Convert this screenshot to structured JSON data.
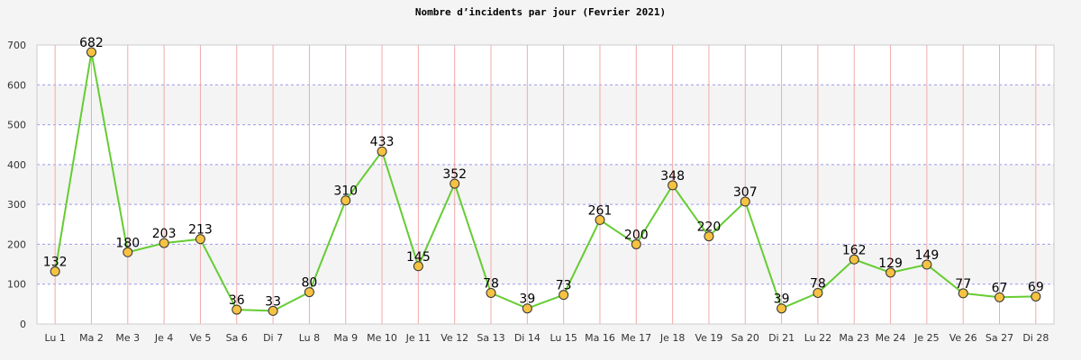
{
  "chart_data": {
    "type": "line",
    "title": "Nombre d’incidents par jour (Fevrier 2021)",
    "xlabel": "",
    "ylabel": "",
    "ylim": [
      0,
      700
    ],
    "yticks": [
      0,
      100,
      200,
      300,
      400,
      500,
      600,
      700
    ],
    "grid": true,
    "categories": [
      "Lu 1",
      "Ma 2",
      "Me 3",
      "Je 4",
      "Ve 5",
      "Sa 6",
      "Di 7",
      "Lu 8",
      "Ma 9",
      "Me 10",
      "Je 11",
      "Ve 12",
      "Sa 13",
      "Di 14",
      "Lu 15",
      "Ma 16",
      "Me 17",
      "Je 18",
      "Ve 19",
      "Sa 20",
      "Di 21",
      "Lu 22",
      "Ma 23",
      "Me 24",
      "Je 25",
      "Ve 26",
      "Sa 27",
      "Di 28"
    ],
    "series": [
      {
        "values": [
          132,
          682,
          180,
          203,
          213,
          36,
          33,
          80,
          310,
          433,
          145,
          352,
          78,
          39,
          73,
          261,
          200,
          348,
          220,
          307,
          39,
          78,
          162,
          129,
          149,
          77,
          67,
          69
        ]
      }
    ],
    "colors": {
      "line": "#66cc33",
      "marker_fill": "#f5c242",
      "marker_stroke": "#333333",
      "vgrid": "#f2aaaa",
      "hgrid": "#9999ee",
      "band": "#f4f4f4",
      "plot_bg": "#ffffff"
    }
  }
}
